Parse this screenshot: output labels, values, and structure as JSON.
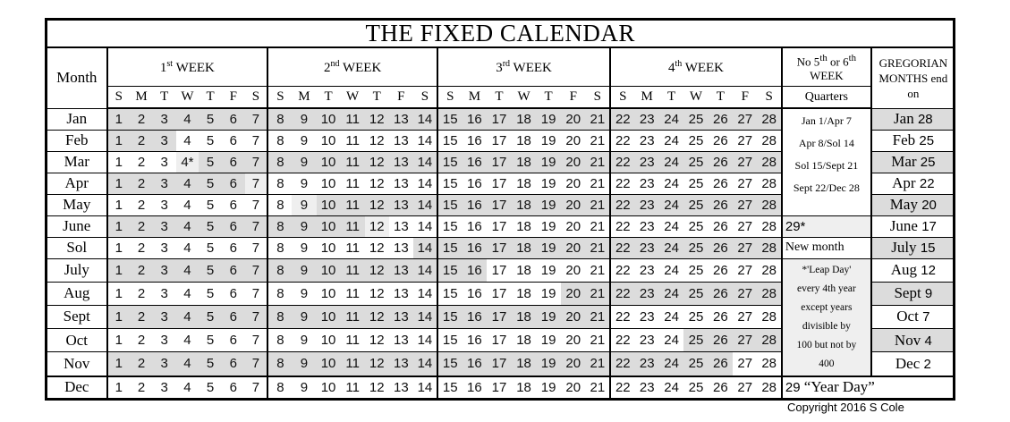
{
  "title": "THE FIXED CALENDAR",
  "header": {
    "month": "Month",
    "weeks": [
      {
        "num": "1",
        "sup": "st",
        "label": "WEEK"
      },
      {
        "num": "2",
        "sup": "nd",
        "label": "WEEK"
      },
      {
        "num": "3",
        "sup": "rd",
        "label": "WEEK"
      },
      {
        "num": "4",
        "sup": "th",
        "label": "WEEK"
      }
    ],
    "no_week": {
      "pre": "No 5",
      "sup1": "th",
      "mid": " or 6",
      "sup2": "th",
      "post": "WEEK"
    },
    "gregorian": "GREGORIAN MONTHS end on",
    "quarters": "Quarters",
    "day_letters": [
      "S",
      "M",
      "T",
      "W",
      "T",
      "F",
      "S"
    ]
  },
  "shade_colors": {
    "d": "#dcdcdc",
    "l": "#efefef"
  },
  "months": [
    {
      "name": "Jan",
      "shade": "dddddddddddddddddddddddddddd",
      "mark": {},
      "greg": {
        "m": "Jan",
        "d": "28",
        "shade": "d"
      }
    },
    {
      "name": "Feb",
      "shade": "ddd.........................",
      "mark": {},
      "greg": {
        "m": "Feb",
        "d": "25",
        "shade": ""
      }
    },
    {
      "name": "Mar",
      "shade": "...ldddddddddddddddddddddddd",
      "mark": {
        "4": "4*"
      },
      "greg": {
        "m": "Mar",
        "d": "25",
        "shade": "d"
      }
    },
    {
      "name": "Apr",
      "shade": "ddddddl.....................",
      "mark": {},
      "greg": {
        "m": "Apr",
        "d": "22",
        "shade": ""
      }
    },
    {
      "name": "May",
      "shade": "........lddddddddddddddddddd",
      "mark": {},
      "greg": {
        "m": "May",
        "d": "20",
        "shade": "d"
      }
    },
    {
      "name": "June",
      "shade": "dddddddddddl................",
      "mark": {},
      "greg": {
        "m": "June",
        "d": "17",
        "shade": ""
      }
    },
    {
      "name": "Sol",
      "shade": ".............ddddddddddddddd",
      "mark": {},
      "greg": {
        "m": "July",
        "d": "15",
        "shade": "d"
      }
    },
    {
      "name": "July",
      "shade": "dddddddddddddddd............",
      "mark": {},
      "greg": {
        "m": "Aug",
        "d": "12",
        "shade": ""
      }
    },
    {
      "name": "Aug",
      "shade": "...................ddddddddd",
      "mark": {},
      "greg": {
        "m": "Sept",
        "d": "9",
        "shade": "d"
      }
    },
    {
      "name": "Sept",
      "shade": "ddddddddddddddddddddd.......",
      "mark": {},
      "greg": {
        "m": "Oct",
        "d": "7",
        "shade": ""
      }
    },
    {
      "name": "Oct",
      "shade": "........................dddd",
      "mark": {},
      "greg": {
        "m": "Nov",
        "d": "4",
        "shade": "d"
      }
    },
    {
      "name": "Nov",
      "shade": "dddddddddddddddddddddddddd..",
      "mark": {},
      "greg": {
        "m": "Dec",
        "d": "2",
        "shade": ""
      }
    },
    {
      "name": "Dec",
      "shade": "............................",
      "mark": {},
      "greg": null
    }
  ],
  "quarters": [
    "Jan 1/Apr 7",
    "Apr 8/Sol 14",
    "Sol 15/Sept 21",
    "Sept 22/Dec 28"
  ],
  "leap_cell": "29*",
  "new_month": "New month",
  "leap_note": [
    "*'Leap Day'",
    "every 4th year",
    "except years",
    "divisible by",
    "100 but not by",
    "400"
  ],
  "year_day": {
    "num": "29",
    "label": "“Year Day”"
  },
  "copyright": "Copyright 2016 S Cole"
}
